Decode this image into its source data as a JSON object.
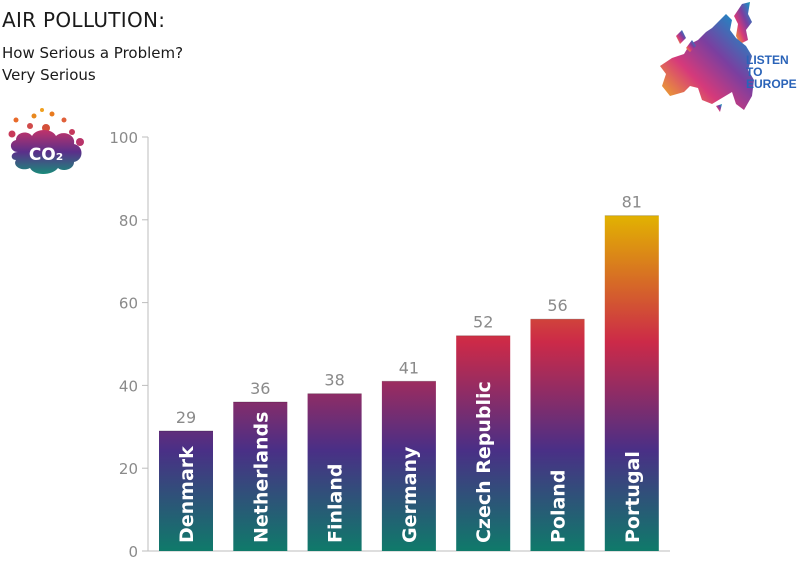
{
  "header": {
    "title": "AIR POLLUTION:",
    "subtitle_line1": "How Serious a Problem?",
    "subtitle_line2": "Very Serious"
  },
  "logo": {
    "line1": "LISTEN",
    "line2": "TO",
    "line3": "EUROPE"
  },
  "badge": {
    "text": "CO₂"
  },
  "colors": {
    "bar_top": "#e2b400",
    "bar_mid": "#cc2a48",
    "bar_low": "#4a2f86",
    "bar_bottom": "#0f7a6a",
    "axis": "#bdbdbd",
    "logo_text": "#2a63b8"
  },
  "chart_data": {
    "type": "bar",
    "categories": [
      "Denmark",
      "Netherlands",
      "Finland",
      "Germany",
      "Czech Republic",
      "Poland",
      "Portugal"
    ],
    "values": [
      29,
      36,
      38,
      41,
      52,
      56,
      81
    ],
    "yticks": [
      "0",
      "20",
      "40",
      "60",
      "80",
      "100"
    ],
    "ylim": [
      0,
      100
    ],
    "title": "AIR POLLUTION:",
    "xlabel": "",
    "ylabel": "",
    "grid": false,
    "data_labels": true
  }
}
